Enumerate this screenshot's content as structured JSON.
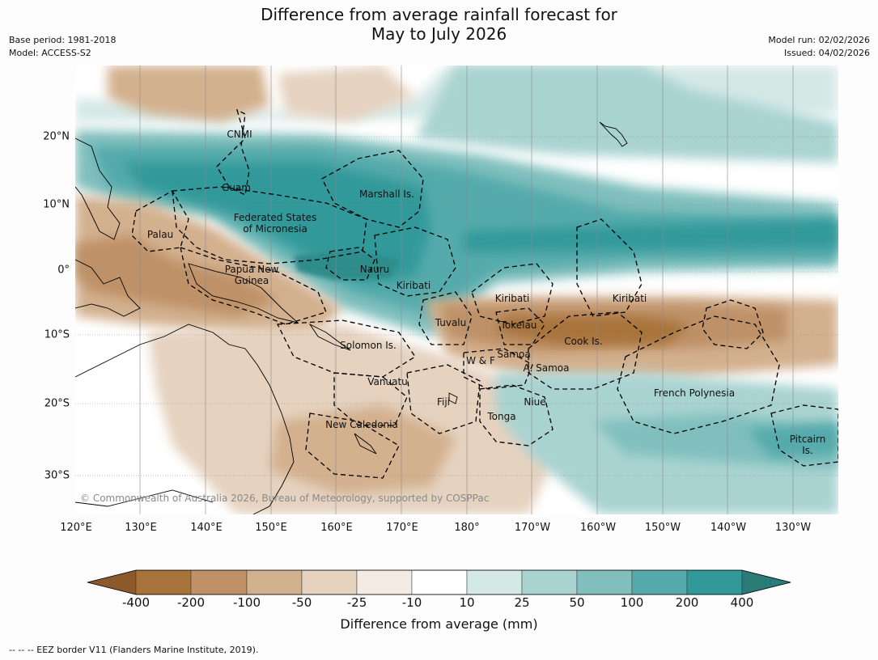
{
  "title": {
    "line1": "Difference from average rainfall forecast for",
    "line2": "May to July 2026"
  },
  "meta": {
    "base_period": "Base period: 1981-2018",
    "model": "Model: ACCESS-S2",
    "model_run": "Model run: 02/02/2026",
    "issued": "Issued: 04/02/2026"
  },
  "axes": {
    "lat_labels": [
      "20°N",
      "10°N",
      "0°",
      "10°S",
      "20°S",
      "30°S"
    ],
    "lon_labels": [
      "120°E",
      "130°E",
      "140°E",
      "150°E",
      "160°E",
      "170°E",
      "180°",
      "170°W",
      "160°W",
      "150°W",
      "140°W",
      "130°W"
    ]
  },
  "places": {
    "cnmi": "CNMI",
    "guam": "Guam",
    "marshall": "Marshall Is.",
    "fsm_1": "Federated States",
    "fsm_2": "of Micronesia",
    "palau": "Palau",
    "png_1": "Papua New",
    "png_2": "Guinea",
    "nauru": "Nauru",
    "kiribati_w": "Kiribati",
    "kiribati_c": "Kiribati",
    "kiribati_e": "Kiribati",
    "tuvalu": "Tuvalu",
    "tokelau": "Tokelau",
    "cook": "Cook Is.",
    "solomon": "Solomon Is.",
    "wf": "W & F",
    "samoa": "Samoa",
    "asamoa": "A. Samoa",
    "vanuatu": "Vanuatu",
    "fiji": "Fiji",
    "niue": "Niue",
    "frpoly": "French Polynesia",
    "tonga": "Tonga",
    "newcal": "New Caledonia",
    "pitcairn_1": "Pitcairn",
    "pitcairn_2": "Is."
  },
  "copyright": "© Commonwealth of Australia 2026, Bureau of Meteorology, supported by COSPPac",
  "colorbar": {
    "title": "Difference from average (mm)",
    "labels": [
      "-400",
      "-200",
      "-100",
      "-50",
      "-25",
      "-10",
      "10",
      "25",
      "50",
      "100",
      "200",
      "400"
    ],
    "colors": [
      "#8c5a2a",
      "#a8733a",
      "#be9167",
      "#d3b08e",
      "#e5d2bf",
      "#f4ece4",
      "#ffffff",
      "#d4e8e6",
      "#a9d3d1",
      "#80bfbe",
      "#55aaab",
      "#31999a",
      "#2a7a78"
    ]
  },
  "footnote": "--  --  -- EEZ border V11 (Flanders Marine Institute, 2019)."
}
